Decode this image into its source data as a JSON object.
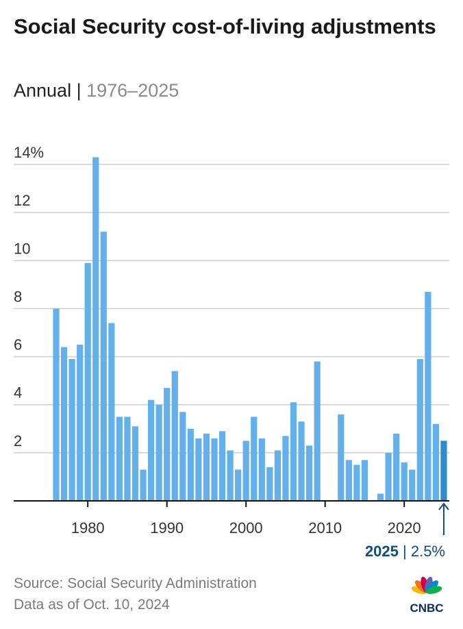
{
  "title": "Social Security cost-of-living adjustments",
  "subtitle_main": "Annual",
  "subtitle_sep": " | ",
  "subtitle_range": "1976–2025",
  "source": "Source: Social Security Administration",
  "data_as_of": "Data as of Oct. 10, 2024",
  "logo": "CNBC",
  "colors": {
    "bar": "#64b0ea",
    "highlight": "#2e8bcf",
    "annotation": "#0f4c7f"
  },
  "chart_data": {
    "type": "bar",
    "x": [
      1976,
      1977,
      1978,
      1979,
      1980,
      1981,
      1982,
      1983,
      1984,
      1985,
      1986,
      1987,
      1988,
      1989,
      1990,
      1991,
      1992,
      1993,
      1994,
      1995,
      1996,
      1997,
      1998,
      1999,
      2000,
      2001,
      2002,
      2003,
      2004,
      2005,
      2006,
      2007,
      2008,
      2009,
      2010,
      2011,
      2012,
      2013,
      2014,
      2015,
      2016,
      2017,
      2018,
      2019,
      2020,
      2021,
      2022,
      2023,
      2024,
      2025
    ],
    "values": [
      8.0,
      6.4,
      5.9,
      6.5,
      9.9,
      14.3,
      11.2,
      7.4,
      3.5,
      3.5,
      3.1,
      1.3,
      4.2,
      4.0,
      4.7,
      5.4,
      3.7,
      3.0,
      2.6,
      2.8,
      2.6,
      2.9,
      2.1,
      1.3,
      2.5,
      3.5,
      2.6,
      1.4,
      2.1,
      2.7,
      4.1,
      3.3,
      2.3,
      5.8,
      0,
      0,
      3.6,
      1.7,
      1.5,
      1.7,
      0,
      0.3,
      2.0,
      2.8,
      1.6,
      1.3,
      5.9,
      8.7,
      3.2,
      2.5
    ],
    "unit": "%",
    "ylim": [
      0,
      14
    ],
    "yticks": [
      {
        "v": 2,
        "label": "2"
      },
      {
        "v": 4,
        "label": "4"
      },
      {
        "v": 6,
        "label": "6"
      },
      {
        "v": 8,
        "label": "8"
      },
      {
        "v": 10,
        "label": "10"
      },
      {
        "v": 12,
        "label": "12"
      },
      {
        "v": 14,
        "label": "14%"
      }
    ],
    "xticks": [
      {
        "v": 1980,
        "label": "1980"
      },
      {
        "v": 1990,
        "label": "1990"
      },
      {
        "v": 2000,
        "label": "2000"
      },
      {
        "v": 2010,
        "label": "2010"
      },
      {
        "v": 2020,
        "label": "2020"
      }
    ],
    "grid": true,
    "annotation": {
      "year_label": "2025",
      "sep": " | ",
      "value_label": "2.5%"
    }
  }
}
